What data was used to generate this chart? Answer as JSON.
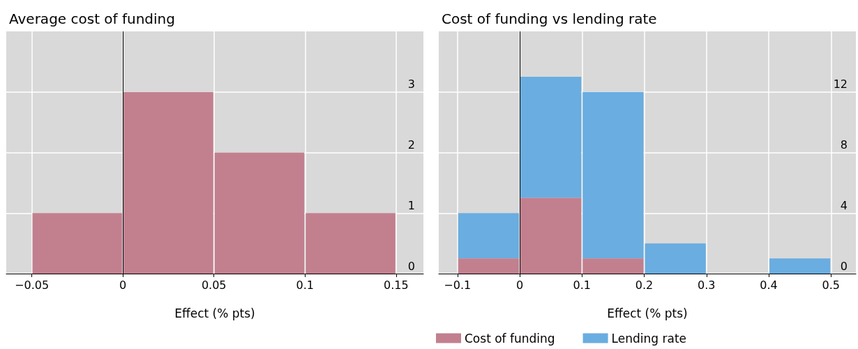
{
  "chart_data": [
    {
      "type": "histogram",
      "title": "Average cost of funding",
      "xlabel": "Effect (% pts)",
      "bins": [
        -0.05,
        0,
        0.05,
        0.1,
        0.15
      ],
      "values": [
        1,
        3,
        2,
        1
      ],
      "color": "#c2808f",
      "xlim": [
        -0.064,
        0.165
      ],
      "xticks": [
        {
          "value": -0.05,
          "label": "−0.05"
        },
        0,
        0.05,
        0.1,
        0.15
      ],
      "ylim": [
        0,
        4
      ],
      "yticks": [
        0,
        1,
        2,
        3
      ],
      "grid": true,
      "ref_lines": [
        {
          "axis": "x",
          "value": 0,
          "color": "#000000"
        }
      ]
    },
    {
      "type": "bar",
      "title": "Cost of funding vs lending rate",
      "xlabel": "Effect (% pts)",
      "x": [
        -0.05,
        0.05,
        0.15,
        0.25,
        0.35,
        0.45
      ],
      "series": [
        {
          "name": "Cost of funding",
          "color": "#c2808f",
          "values": [
            1,
            5,
            1,
            0,
            0,
            0
          ]
        },
        {
          "name": "Lending rate",
          "color": "#6aade0",
          "values": [
            3,
            8,
            11,
            2,
            0,
            1
          ]
        }
      ],
      "stacked": true,
      "xlim": [
        -0.13,
        0.54
      ],
      "xticks": [
        {
          "value": -0.1,
          "label": "−0.1"
        },
        0,
        0.1,
        0.2,
        0.3,
        0.4,
        0.5
      ],
      "ylim": [
        0,
        16
      ],
      "yticks": [
        0,
        4,
        8,
        12
      ],
      "grid": true,
      "legend": "bottom",
      "ref_lines": [
        {
          "axis": "x",
          "value": 0,
          "color": "#000000"
        }
      ]
    }
  ]
}
